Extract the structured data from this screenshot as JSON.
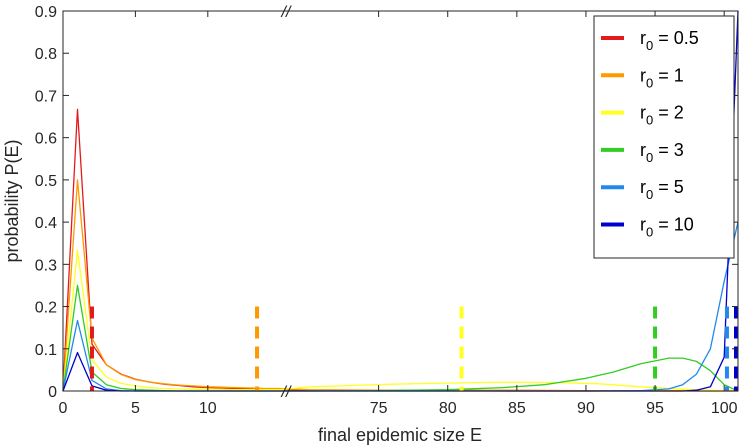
{
  "chart_data": {
    "type": "line",
    "xlabel": "final epidemic size E",
    "ylabel": "probability P(E)",
    "ylim": [
      0,
      0.9
    ],
    "yticks": [
      "0",
      "0.1",
      "0.2",
      "0.3",
      "0.4",
      "0.5",
      "0.6",
      "0.7",
      "0.8",
      "0.9"
    ],
    "yticks_values": [
      0,
      0.1,
      0.2,
      0.3,
      0.4,
      0.5,
      0.6,
      0.7,
      0.8,
      0.9
    ],
    "x_segments": [
      {
        "range": [
          0,
          15.4
        ],
        "ticks": [
          0,
          5,
          10
        ]
      },
      {
        "range": [
          68.3,
          101
        ],
        "ticks": [
          75,
          80,
          85,
          90,
          95,
          100
        ]
      }
    ],
    "xticks": [
      "0",
      "5",
      "10",
      "75",
      "80",
      "85",
      "90",
      "95",
      "100"
    ],
    "xticks_values": [
      0,
      5,
      10,
      75,
      80,
      85,
      90,
      95,
      100
    ],
    "axis_break_symbol": "//",
    "grid": false,
    "legend_position": "top-right",
    "legend_items": [
      {
        "prefix": "r",
        "sub": "0",
        "suffix": " = 0.5"
      },
      {
        "prefix": "r",
        "sub": "0",
        "suffix": " = 1"
      },
      {
        "prefix": "r",
        "sub": "0",
        "suffix": " = 2"
      },
      {
        "prefix": "r",
        "sub": "0",
        "suffix": " = 3"
      },
      {
        "prefix": "r",
        "sub": "0",
        "suffix": " = 5"
      },
      {
        "prefix": "r",
        "sub": "0",
        "suffix": " = 10"
      }
    ],
    "series": [
      {
        "color": "#e31a1c",
        "mean": 2,
        "x": [
          0,
          1,
          2,
          3,
          4,
          5,
          6,
          7,
          8,
          9,
          10,
          11,
          12,
          13,
          14,
          15,
          70,
          75,
          80,
          85,
          90,
          95,
          100,
          101
        ],
        "y": [
          0,
          0.667,
          0.111,
          0.062,
          0.04,
          0.028,
          0.021,
          0.016,
          0.013,
          0.01,
          0.008,
          0.007,
          0.006,
          0.005,
          0.004,
          0.004,
          0.001,
          0.001,
          0.001,
          0,
          0,
          0,
          0,
          0
        ]
      },
      {
        "color": "#ff9900",
        "mean": 13.4,
        "x": [
          0,
          1,
          2,
          3,
          4,
          5,
          6,
          7,
          8,
          9,
          10,
          11,
          12,
          13,
          14,
          15,
          70,
          75,
          80,
          85,
          90,
          95,
          100,
          101
        ],
        "y": [
          0,
          0.5,
          0.125,
          0.062,
          0.039,
          0.027,
          0.021,
          0.017,
          0.014,
          0.012,
          0.01,
          0.009,
          0.008,
          0.007,
          0.006,
          0.006,
          0.003,
          0.002,
          0.002,
          0.002,
          0.001,
          0.001,
          0.001,
          0.001
        ]
      },
      {
        "color": "#ffff22",
        "mean": 81,
        "x": [
          0,
          1,
          2,
          3,
          4,
          5,
          6,
          7,
          8,
          9,
          10,
          11,
          12,
          13,
          14,
          15,
          70,
          73,
          76,
          79,
          82,
          85,
          88,
          91,
          94,
          97,
          100,
          101
        ],
        "y": [
          0,
          0.333,
          0.074,
          0.033,
          0.018,
          0.012,
          0.008,
          0.006,
          0.005,
          0.004,
          0.004,
          0.003,
          0.003,
          0.003,
          0.003,
          0.003,
          0.01,
          0.013,
          0.016,
          0.018,
          0.02,
          0.021,
          0.02,
          0.017,
          0.01,
          0.004,
          0.001,
          0
        ]
      },
      {
        "color": "#33cc22",
        "mean": 95,
        "x": [
          0,
          1,
          2,
          3,
          4,
          5,
          6,
          7,
          8,
          9,
          10,
          11,
          12,
          13,
          14,
          15,
          70,
          75,
          80,
          84,
          87,
          90,
          92,
          94,
          96,
          97,
          98,
          99,
          100,
          101
        ],
        "y": [
          0,
          0.25,
          0.045,
          0.015,
          0.006,
          0.003,
          0.002,
          0.001,
          0,
          0,
          0,
          0,
          0,
          0,
          0,
          0,
          0,
          0.001,
          0.003,
          0.008,
          0.015,
          0.03,
          0.045,
          0.065,
          0.078,
          0.078,
          0.07,
          0.048,
          0.015,
          0
        ]
      },
      {
        "color": "#2288ee",
        "mean": 100.2,
        "x": [
          0,
          1,
          2,
          3,
          4,
          5,
          6,
          7,
          8,
          9,
          10,
          11,
          12,
          13,
          14,
          15,
          70,
          90,
          94,
          96,
          97,
          98,
          99,
          100,
          101
        ],
        "y": [
          0,
          0.167,
          0.025,
          0.005,
          0.001,
          0,
          0,
          0,
          0,
          0,
          0,
          0,
          0,
          0,
          0,
          0,
          0,
          0,
          0.001,
          0.005,
          0.015,
          0.04,
          0.1,
          0.26,
          0.4
        ]
      },
      {
        "color": "#0000cc",
        "mean": 101,
        "x": [
          0,
          1,
          2,
          3,
          4,
          5,
          6,
          7,
          8,
          9,
          10,
          11,
          12,
          13,
          14,
          15,
          70,
          90,
          97,
          98,
          99,
          100,
          101
        ],
        "y": [
          0,
          0.091,
          0.012,
          0.002,
          0,
          0,
          0,
          0,
          0,
          0,
          0,
          0,
          0,
          0,
          0,
          0,
          0,
          0,
          0,
          0.002,
          0.01,
          0.08,
          0.9
        ]
      }
    ]
  }
}
